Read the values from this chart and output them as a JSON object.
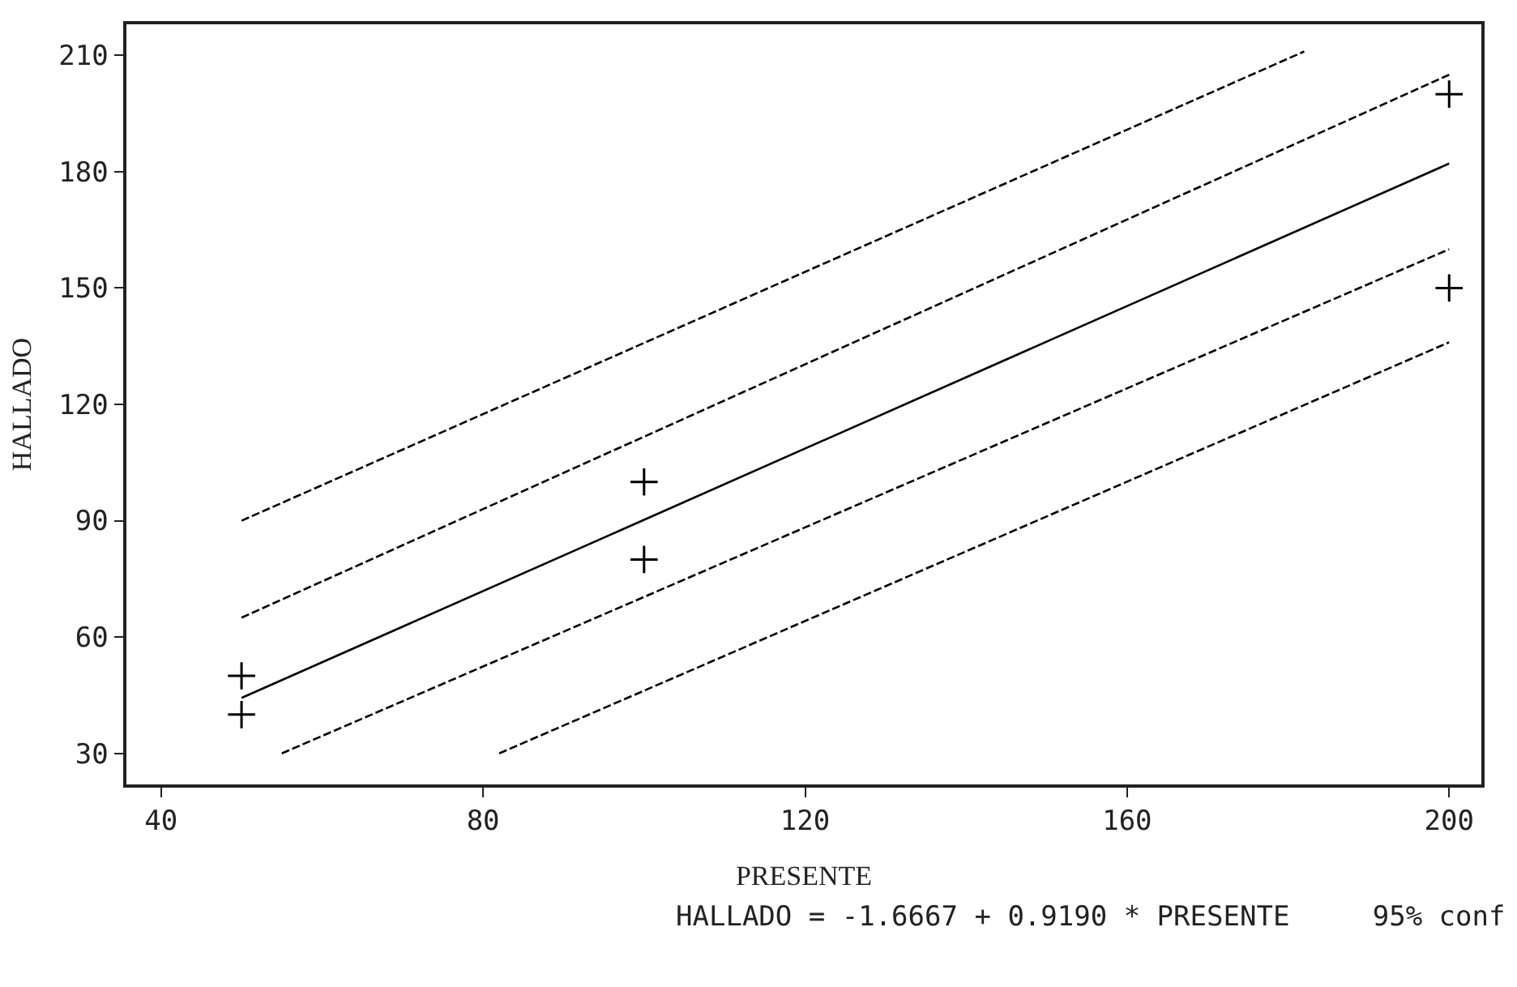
{
  "chart_data": {
    "type": "scatter",
    "xlabel": "PRESENTE",
    "ylabel": "HALLADO",
    "xlim": [
      35.7,
      204
    ],
    "ylim": [
      22,
      218
    ],
    "xticks": [
      40,
      80,
      120,
      160,
      200
    ],
    "yticks": [
      30,
      60,
      90,
      120,
      150,
      180,
      210
    ],
    "annotations": [
      "HALLADO = -1.6667 + 0.9190 * PRESENTE     95% conf"
    ],
    "series": [
      {
        "color": "#000000",
        "marker": "cross",
        "x": [
          50,
          50,
          100,
          100,
          200,
          200
        ],
        "values": [
          50,
          40,
          100,
          80,
          200,
          150
        ]
      },
      {
        "type": "line",
        "color": "#000000",
        "line_style": "solid",
        "x": [
          50,
          200
        ],
        "values": [
          44.3,
          182.1
        ]
      },
      {
        "type": "line",
        "color": "#000000",
        "line_style": "dashed",
        "x": [
          50,
          182
        ],
        "values": [
          90,
          211
        ]
      },
      {
        "type": "line",
        "color": "#000000",
        "line_style": "dashed",
        "x": [
          50,
          200
        ],
        "values": [
          65,
          205
        ]
      },
      {
        "type": "line",
        "color": "#000000",
        "line_style": "dashed",
        "x": [
          55,
          200
        ],
        "values": [
          30,
          160
        ]
      },
      {
        "type": "line",
        "color": "#000000",
        "line_style": "dashed",
        "x": [
          82,
          200
        ],
        "values": [
          30,
          136
        ]
      }
    ]
  }
}
